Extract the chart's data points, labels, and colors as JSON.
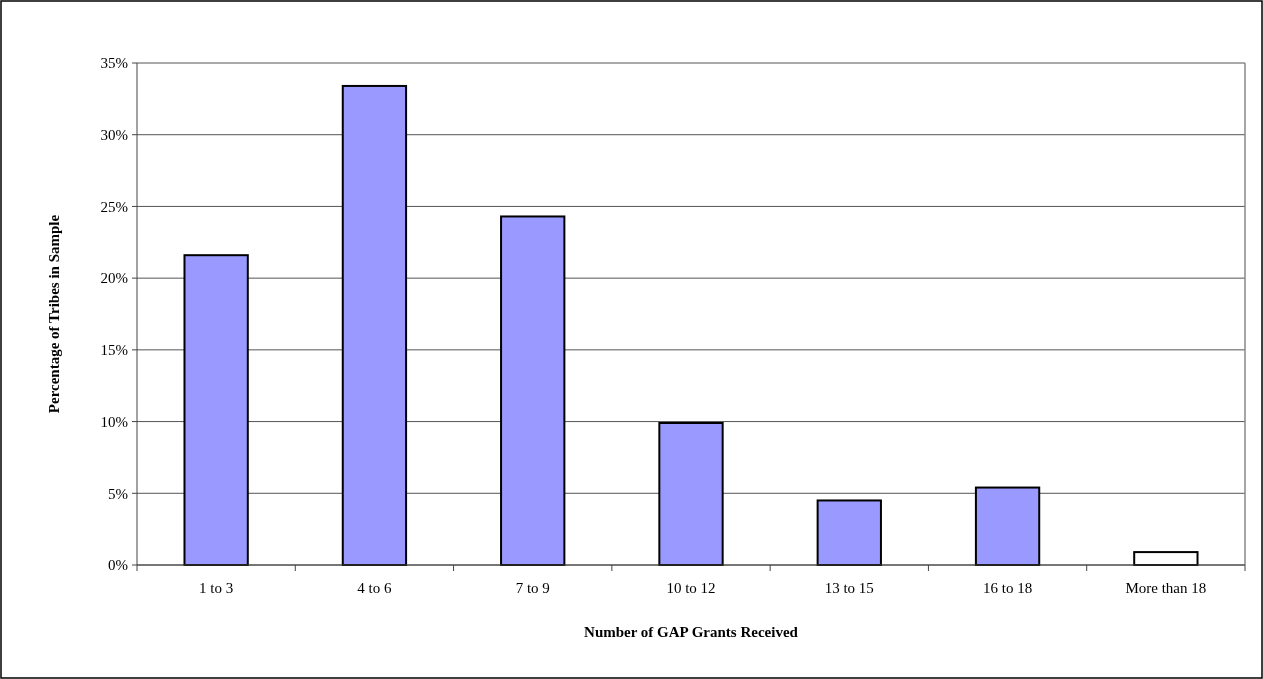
{
  "chart_data": {
    "type": "bar",
    "xlabel": "Number of GAP Grants Received",
    "ylabel": "Percentage of Tribes in Sample",
    "categories": [
      "1 to 3",
      "4 to 6",
      "7 to 9",
      "10 to 12",
      "13 to 15",
      "16 to 18",
      "More than 18"
    ],
    "values": [
      21.6,
      33.4,
      24.3,
      9.9,
      4.5,
      5.4,
      0.9
    ],
    "colors": [
      "#9999ff",
      "#9999ff",
      "#9999ff",
      "#9999ff",
      "#9999ff",
      "#9999ff",
      "#ffffff"
    ],
    "ylim": [
      0,
      35
    ],
    "yticks": [
      {
        "value": 0,
        "label": "0%"
      },
      {
        "value": 5,
        "label": "5%"
      },
      {
        "value": 10,
        "label": "10%"
      },
      {
        "value": 15,
        "label": "15%"
      },
      {
        "value": 20,
        "label": "20%"
      },
      {
        "value": 25,
        "label": "25%"
      },
      {
        "value": 30,
        "label": "30%"
      },
      {
        "value": 35,
        "label": "35%"
      }
    ],
    "grid": "y"
  }
}
